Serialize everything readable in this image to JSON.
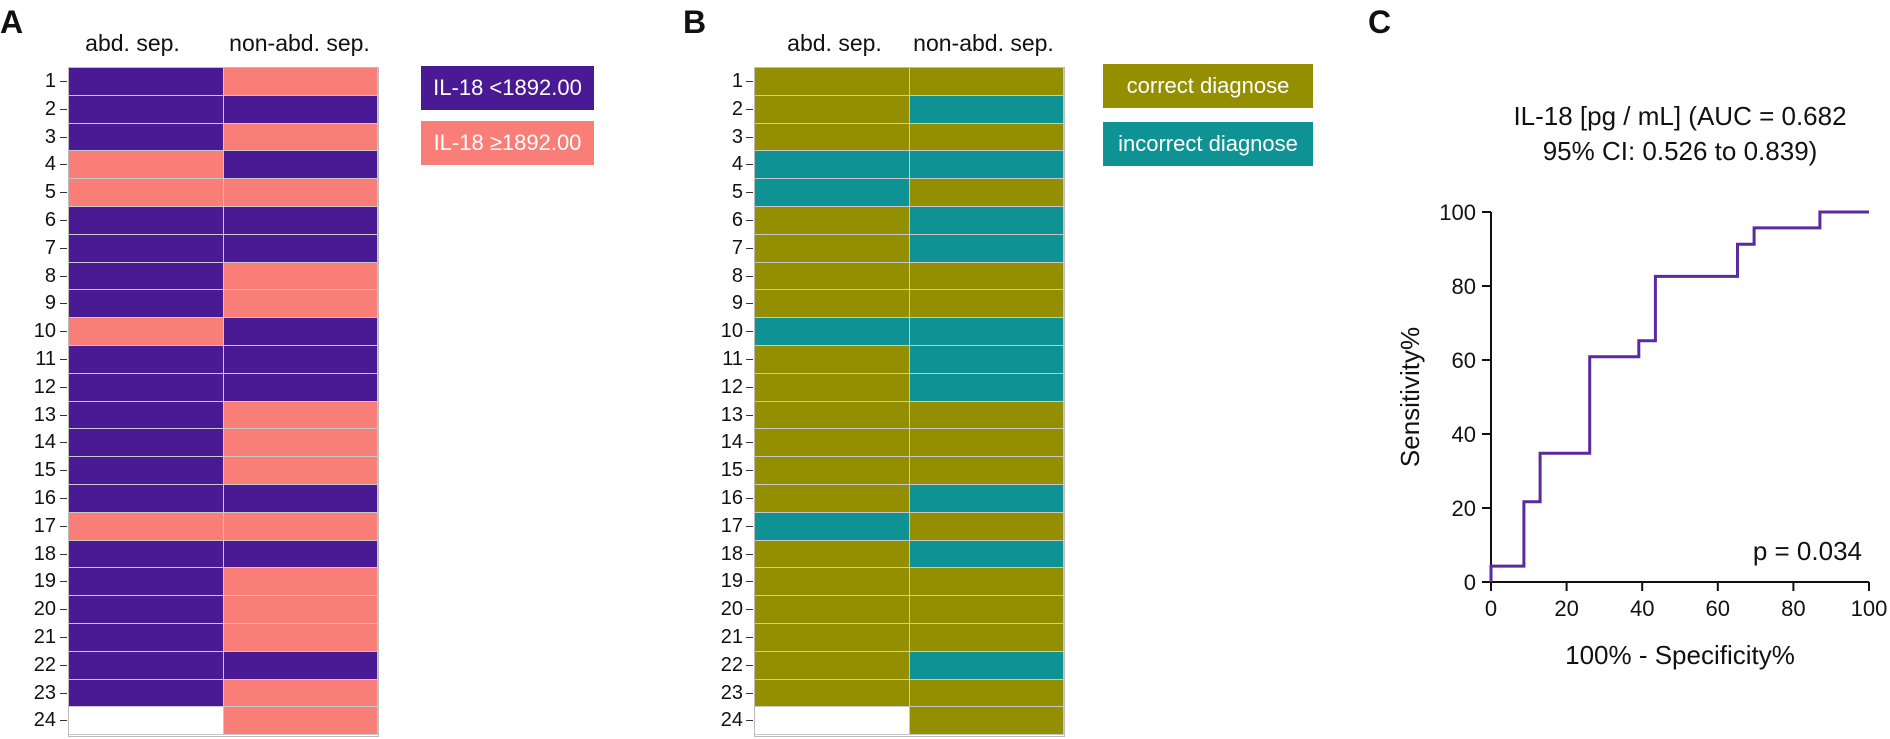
{
  "panels": {
    "a_letter": "A",
    "b_letter": "B",
    "c_letter": "C"
  },
  "heatmap_a": {
    "col_labels": [
      "abd. sep.",
      "non-abd. sep."
    ],
    "legend": [
      {
        "label": "IL-18 <1892.00",
        "color": "#4a1994"
      },
      {
        "label": "IL-18 ≥1892.00",
        "color": "#fa7e78"
      }
    ]
  },
  "heatmap_b": {
    "col_labels": [
      "abd. sep.",
      "non-abd. sep."
    ],
    "legend": [
      {
        "label": "correct diagnose",
        "color": "#938f00"
      },
      {
        "label": "incorrect diagnose",
        "color": "#0e9294"
      }
    ]
  },
  "roc": {
    "title_line1": "IL-18 [pg / mL] (AUC = 0.682",
    "title_line2": "95% CI: 0.526 to 0.839)",
    "annotation": "p = 0.034",
    "xlabel": "100% - Specificity%",
    "ylabel": "Sensitivity%",
    "line_color": "#5b2aa0"
  },
  "chart_data": [
    {
      "type": "heatmap",
      "title": "",
      "rows": [
        "1",
        "2",
        "3",
        "4",
        "5",
        "6",
        "7",
        "8",
        "9",
        "10",
        "11",
        "12",
        "13",
        "14",
        "15",
        "16",
        "17",
        "18",
        "19",
        "20",
        "21",
        "22",
        "23",
        "24"
      ],
      "columns": [
        "abd. sep.",
        "non-abd. sep."
      ],
      "categories": [
        "IL-18 <1892.00",
        "IL-18 ≥1892.00"
      ],
      "values": [
        [
          "low",
          "high"
        ],
        [
          "low",
          "low"
        ],
        [
          "low",
          "high"
        ],
        [
          "high",
          "low"
        ],
        [
          "high",
          "high"
        ],
        [
          "low",
          "low"
        ],
        [
          "low",
          "low"
        ],
        [
          "low",
          "high"
        ],
        [
          "low",
          "high"
        ],
        [
          "high",
          "low"
        ],
        [
          "low",
          "low"
        ],
        [
          "low",
          "low"
        ],
        [
          "low",
          "high"
        ],
        [
          "low",
          "high"
        ],
        [
          "low",
          "high"
        ],
        [
          "low",
          "low"
        ],
        [
          "high",
          "high"
        ],
        [
          "low",
          "low"
        ],
        [
          "low",
          "high"
        ],
        [
          "low",
          "high"
        ],
        [
          "low",
          "high"
        ],
        [
          "low",
          "low"
        ],
        [
          "low",
          "high"
        ],
        [
          null,
          "high"
        ]
      ]
    },
    {
      "type": "heatmap",
      "title": "",
      "rows": [
        "1",
        "2",
        "3",
        "4",
        "5",
        "6",
        "7",
        "8",
        "9",
        "10",
        "11",
        "12",
        "13",
        "14",
        "15",
        "16",
        "17",
        "18",
        "19",
        "20",
        "21",
        "22",
        "23",
        "24"
      ],
      "columns": [
        "abd. sep.",
        "non-abd. sep."
      ],
      "categories": [
        "correct diagnose",
        "incorrect diagnose"
      ],
      "values": [
        [
          "correct",
          "correct"
        ],
        [
          "correct",
          "incorrect"
        ],
        [
          "correct",
          "correct"
        ],
        [
          "incorrect",
          "incorrect"
        ],
        [
          "incorrect",
          "correct"
        ],
        [
          "correct",
          "incorrect"
        ],
        [
          "correct",
          "incorrect"
        ],
        [
          "correct",
          "correct"
        ],
        [
          "correct",
          "correct"
        ],
        [
          "incorrect",
          "incorrect"
        ],
        [
          "correct",
          "incorrect"
        ],
        [
          "correct",
          "incorrect"
        ],
        [
          "correct",
          "correct"
        ],
        [
          "correct",
          "correct"
        ],
        [
          "correct",
          "correct"
        ],
        [
          "correct",
          "incorrect"
        ],
        [
          "incorrect",
          "correct"
        ],
        [
          "correct",
          "incorrect"
        ],
        [
          "correct",
          "correct"
        ],
        [
          "correct",
          "correct"
        ],
        [
          "correct",
          "correct"
        ],
        [
          "correct",
          "incorrect"
        ],
        [
          "correct",
          "correct"
        ],
        [
          null,
          "correct"
        ]
      ]
    },
    {
      "type": "line",
      "title": "IL-18 [pg / mL] (AUC = 0.682 95% CI: 0.526 to 0.839)",
      "xlabel": "100% - Specificity%",
      "ylabel": "Sensitivity%",
      "xlim": [
        0,
        100
      ],
      "ylim": [
        0,
        100
      ],
      "xticks": [
        0,
        20,
        40,
        60,
        80,
        100
      ],
      "yticks": [
        0,
        20,
        40,
        60,
        80,
        100
      ],
      "grid": false,
      "series": [
        {
          "name": "IL-18 ROC",
          "x": [
            0,
            0,
            8.7,
            8.7,
            13,
            13,
            26.1,
            26.1,
            39.1,
            39.1,
            43.5,
            43.5,
            65.2,
            65.2,
            69.6,
            69.6,
            87,
            87,
            100
          ],
          "y": [
            0,
            4.3,
            4.3,
            21.7,
            21.7,
            34.8,
            34.8,
            60.9,
            60.9,
            65.2,
            65.2,
            82.6,
            82.6,
            91.3,
            91.3,
            95.7,
            95.7,
            100,
            100
          ]
        }
      ],
      "annotations": [
        "p = 0.034"
      ]
    }
  ]
}
